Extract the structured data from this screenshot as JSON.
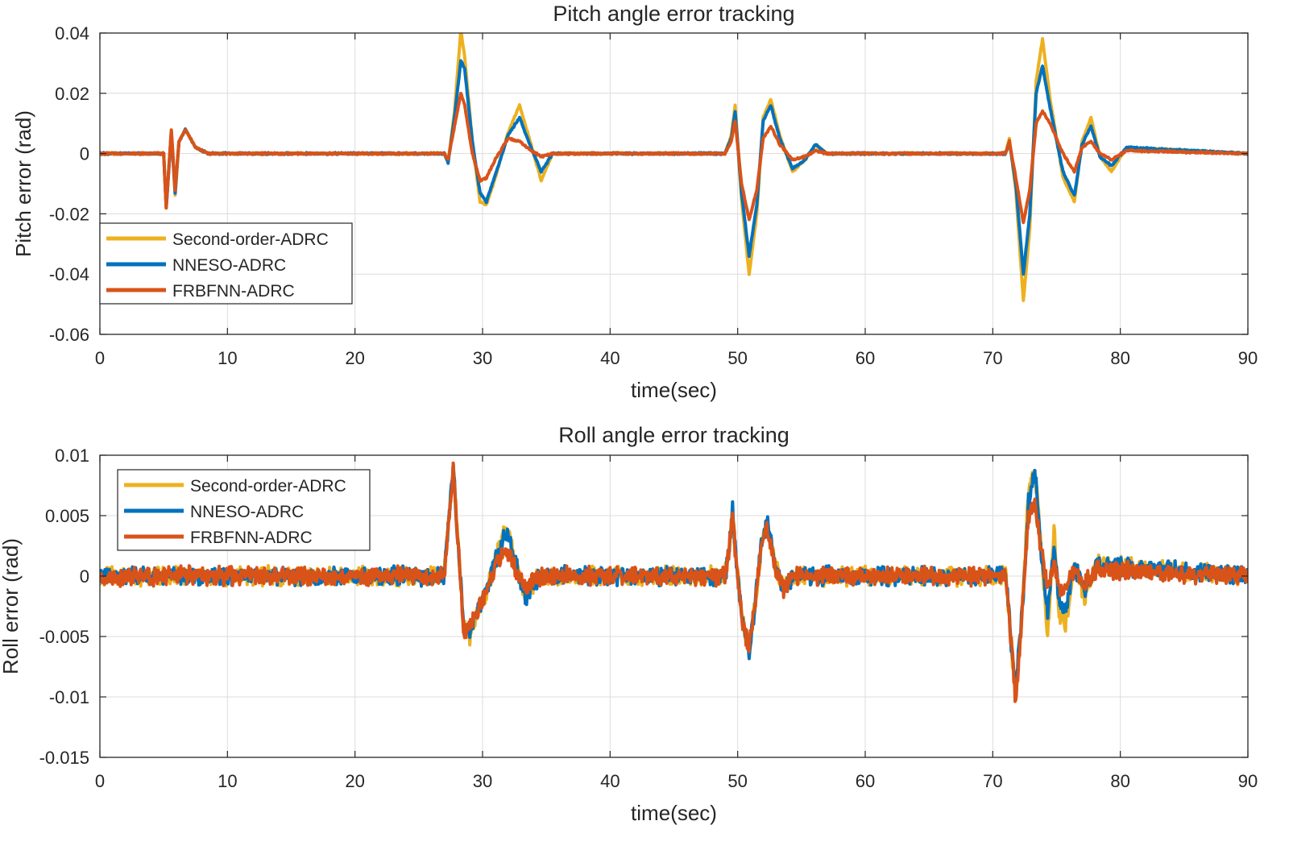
{
  "chart_data": [
    {
      "type": "line",
      "title": "Pitch angle error tracking",
      "xlabel": "time(sec)",
      "ylabel": "Pitch error (rad)",
      "xlim": [
        0,
        90
      ],
      "ylim": [
        -0.06,
        0.04
      ],
      "xticks": [
        0,
        10,
        20,
        30,
        40,
        50,
        60,
        70,
        80,
        90
      ],
      "xtick_labels": [
        "0",
        "10",
        "20",
        "30",
        "40",
        "50",
        "60",
        "70",
        "80",
        "90"
      ],
      "yticks": [
        -0.06,
        -0.04,
        -0.02,
        0,
        0.02,
        0.04
      ],
      "ytick_labels": [
        "-0.06",
        "-0.04",
        "-0.02",
        "0",
        "0.02",
        "0.04"
      ],
      "grid": true,
      "legend": "bottom-left",
      "series": [
        {
          "name": "Second-order-ADRC",
          "color": "#EDB120",
          "x": [
            0,
            5,
            5.2,
            5.6,
            5.9,
            6.2,
            6.7,
            7.5,
            8.5,
            27,
            27.3,
            27.8,
            28.3,
            28.6,
            29.2,
            29.8,
            30.3,
            31.0,
            32.0,
            32.9,
            33.8,
            34.6,
            35.5,
            49,
            49.5,
            49.8,
            50.3,
            50.9,
            51.5,
            52.0,
            52.6,
            53.3,
            54.3,
            55.3,
            56.1,
            57.0,
            71,
            71.3,
            71.8,
            72.4,
            72.9,
            73.4,
            73.9,
            74.5,
            75.5,
            76.4,
            77.0,
            77.7,
            78.4,
            79.3,
            80.5,
            90
          ],
          "y": [
            0,
            0,
            -0.018,
            0.007,
            -0.014,
            0.004,
            0.008,
            0.002,
            0,
            0,
            -0.003,
            0.014,
            0.041,
            0.032,
            0.004,
            -0.016,
            -0.017,
            -0.008,
            0.007,
            0.016,
            0.003,
            -0.009,
            0,
            0,
            0.006,
            0.016,
            -0.015,
            -0.04,
            -0.02,
            0.012,
            0.018,
            0.006,
            -0.006,
            -0.002,
            0.003,
            0,
            0,
            0.005,
            -0.012,
            -0.049,
            -0.025,
            0.024,
            0.038,
            0.018,
            -0.008,
            -0.016,
            0.004,
            0.012,
            -0.001,
            -0.006,
            0.002,
            0
          ]
        },
        {
          "name": "NNESO-ADRC",
          "color": "#0072BD",
          "x": [
            0,
            5,
            5.2,
            5.6,
            5.9,
            6.2,
            6.7,
            7.5,
            8.5,
            27,
            27.3,
            27.8,
            28.3,
            28.6,
            29.2,
            29.8,
            30.3,
            31.0,
            32.0,
            32.9,
            33.8,
            34.6,
            35.5,
            49,
            49.5,
            49.8,
            50.3,
            50.9,
            51.5,
            52.0,
            52.6,
            53.3,
            54.3,
            55.3,
            56.1,
            57.0,
            71,
            71.3,
            71.8,
            72.4,
            72.9,
            73.4,
            73.9,
            74.5,
            75.5,
            76.4,
            77.0,
            77.7,
            78.4,
            79.3,
            80.5,
            90
          ],
          "y": [
            0,
            0,
            -0.018,
            0.007,
            -0.013,
            0.004,
            0.008,
            0.002,
            0,
            0,
            -0.003,
            0.012,
            0.031,
            0.028,
            0.004,
            -0.013,
            -0.016,
            -0.007,
            0.006,
            0.012,
            0.002,
            -0.006,
            0,
            0,
            0.005,
            0.014,
            -0.013,
            -0.034,
            -0.017,
            0.011,
            0.016,
            0.005,
            -0.005,
            -0.002,
            0.003,
            0,
            0,
            0.004,
            -0.01,
            -0.04,
            -0.02,
            0.02,
            0.029,
            0.015,
            -0.006,
            -0.014,
            0.003,
            0.009,
            -0.001,
            -0.004,
            0.002,
            0
          ]
        },
        {
          "name": "FRBFNN-ADRC",
          "color": "#D95319",
          "x": [
            0,
            5,
            5.2,
            5.6,
            5.9,
            6.2,
            6.7,
            7.5,
            8.5,
            27,
            27.3,
            27.8,
            28.3,
            28.6,
            29.2,
            29.8,
            30.3,
            31.0,
            32.0,
            32.9,
            33.8,
            34.6,
            35.5,
            49,
            49.5,
            49.8,
            50.3,
            50.9,
            51.5,
            52.0,
            52.6,
            53.3,
            54.3,
            55.3,
            56.1,
            57.0,
            71,
            71.3,
            71.8,
            72.4,
            72.9,
            73.4,
            73.9,
            74.5,
            75.5,
            76.4,
            77.0,
            77.7,
            78.4,
            79.3,
            80.5,
            90
          ],
          "y": [
            0,
            0,
            -0.018,
            0.008,
            -0.012,
            0.004,
            0.008,
            0.002,
            0,
            0,
            -0.002,
            0.009,
            0.02,
            0.016,
            0,
            -0.009,
            -0.008,
            -0.002,
            0.005,
            0.004,
            0.001,
            -0.001,
            0,
            0,
            0.004,
            0.011,
            -0.01,
            -0.022,
            -0.012,
            0.005,
            0.009,
            0.003,
            -0.002,
            -0.001,
            0.001,
            0,
            0,
            0.004,
            -0.008,
            -0.023,
            -0.012,
            0.01,
            0.014,
            0.01,
            0,
            -0.006,
            0.002,
            0.004,
            0,
            -0.002,
            0.001,
            0
          ]
        }
      ]
    },
    {
      "type": "line",
      "title": "Roll angle error tracking",
      "xlabel": "time(sec)",
      "ylabel": "Roll error (rad)",
      "xlim": [
        0,
        90
      ],
      "ylim": [
        -0.015,
        0.01
      ],
      "xticks": [
        0,
        10,
        20,
        30,
        40,
        50,
        60,
        70,
        80,
        90
      ],
      "xtick_labels": [
        "0",
        "10",
        "20",
        "30",
        "40",
        "50",
        "60",
        "70",
        "80",
        "90"
      ],
      "yticks": [
        -0.015,
        -0.01,
        -0.005,
        0,
        0.005,
        0.01
      ],
      "ytick_labels": [
        "-0.015",
        "-0.01",
        "-0.005",
        "0",
        "0.005",
        "0.01"
      ],
      "grid": true,
      "legend": "top-left",
      "series": [
        {
          "name": "Second-order-ADRC",
          "color": "#EDB120",
          "x": [
            0,
            27,
            27.2,
            27.4,
            27.7,
            28.0,
            28.5,
            29.0,
            29.6,
            30.4,
            31.2,
            31.9,
            32.6,
            33.4,
            34.4,
            49,
            49.3,
            49.6,
            49.9,
            50.4,
            50.9,
            51.4,
            51.9,
            52.3,
            52.9,
            53.6,
            54.4,
            71,
            71.2,
            71.4,
            71.8,
            72.3,
            72.8,
            73.3,
            73.8,
            74.3,
            74.8,
            75.2,
            75.7,
            76.4,
            77.2,
            78.2,
            90
          ],
          "y": [
            0,
            0,
            0.003,
            0.005,
            0.009,
            0.004,
            -0.004,
            -0.005,
            -0.003,
            -0.001,
            0.002,
            0.004,
            0.001,
            -0.002,
            0,
            0,
            0.002,
            0.005,
            0.001,
            -0.004,
            -0.006,
            -0.002,
            0.003,
            0.004,
            0.001,
            -0.001,
            0,
            0,
            -0.002,
            -0.005,
            -0.01,
            -0.003,
            0.007,
            0.009,
            0.002,
            -0.005,
            0.004,
            -0.003,
            -0.004,
            0.001,
            -0.002,
            0.001,
            0
          ]
        },
        {
          "name": "NNESO-ADRC",
          "color": "#0072BD",
          "x": [
            0,
            27,
            27.2,
            27.4,
            27.7,
            28.0,
            28.5,
            29.0,
            29.6,
            30.4,
            31.2,
            31.9,
            32.6,
            33.4,
            34.4,
            49,
            49.3,
            49.6,
            49.9,
            50.4,
            50.9,
            51.4,
            51.9,
            52.3,
            52.9,
            53.6,
            54.4,
            71,
            71.2,
            71.4,
            71.8,
            72.3,
            72.8,
            73.3,
            73.8,
            74.3,
            74.8,
            75.2,
            75.7,
            76.4,
            77.2,
            78.2,
            90
          ],
          "y": [
            0,
            0,
            0.003,
            0.005,
            0.009,
            0.004,
            -0.004,
            -0.0045,
            -0.003,
            -0.001,
            0.002,
            0.0035,
            0.001,
            -0.002,
            0,
            0,
            0.002,
            0.0055,
            0.001,
            -0.004,
            -0.0065,
            -0.002,
            0.003,
            0.0045,
            0.001,
            -0.001,
            0,
            0,
            -0.002,
            -0.005,
            -0.0095,
            -0.003,
            0.006,
            0.009,
            0.002,
            -0.003,
            0.0025,
            -0.002,
            -0.003,
            0.001,
            -0.0015,
            0.001,
            0
          ]
        },
        {
          "name": "FRBFNN-ADRC",
          "color": "#D95319",
          "x": [
            0,
            27,
            27.2,
            27.4,
            27.7,
            28.0,
            28.5,
            29.0,
            29.6,
            30.4,
            31.2,
            31.9,
            32.6,
            33.4,
            34.4,
            49,
            49.3,
            49.6,
            49.9,
            50.4,
            50.9,
            51.4,
            51.9,
            52.3,
            52.9,
            53.6,
            54.4,
            71,
            71.2,
            71.4,
            71.8,
            72.3,
            72.8,
            73.3,
            73.8,
            74.3,
            74.8,
            75.2,
            75.7,
            76.4,
            77.2,
            78.2,
            90
          ],
          "y": [
            0,
            0,
            0.003,
            0.005,
            0.009,
            0.004,
            -0.0045,
            -0.004,
            -0.003,
            -0.001,
            0.0015,
            0.002,
            0.0005,
            -0.001,
            0,
            0,
            0.002,
            0.005,
            0.001,
            -0.004,
            -0.006,
            -0.002,
            0.003,
            0.004,
            0.001,
            -0.001,
            0,
            0,
            -0.002,
            -0.005,
            -0.0105,
            -0.003,
            0.005,
            0.006,
            0.002,
            -0.001,
            0.001,
            -0.001,
            -0.001,
            0.0005,
            -0.0005,
            0.0005,
            0
          ]
        }
      ]
    }
  ]
}
